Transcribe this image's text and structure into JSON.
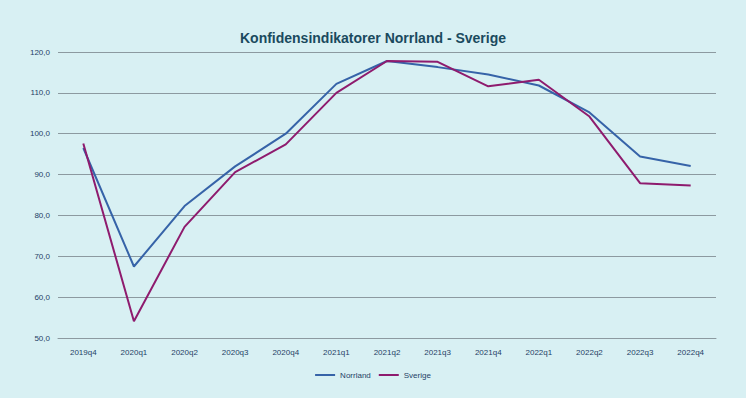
{
  "chart_data": {
    "type": "line",
    "title": "Konfidensindikatorer Norrland - Sverige",
    "categories": [
      "2019q4",
      "2020q1",
      "2020q2",
      "2020q3",
      "2020q4",
      "2021q1",
      "2021q2",
      "2021q3",
      "2021q4",
      "2022q1",
      "2022q2",
      "2022q3",
      "2022q4"
    ],
    "series": [
      {
        "name": "Norrland",
        "color": "#3663a8",
        "values": [
          96.5,
          67.5,
          82.3,
          92.0,
          100.0,
          112.2,
          117.8,
          116.3,
          114.5,
          111.8,
          105.2,
          94.4,
          92.1
        ]
      },
      {
        "name": "Sverige",
        "color": "#8e1b6e",
        "values": [
          97.6,
          54.1,
          77.2,
          90.6,
          97.4,
          110.0,
          117.8,
          117.6,
          111.6,
          113.2,
          104.2,
          87.9,
          87.3
        ]
      }
    ],
    "ylim": [
      50,
      120
    ],
    "yticks": [
      {
        "value": 50,
        "label": "50,0"
      },
      {
        "value": 60,
        "label": "60,0"
      },
      {
        "value": 70,
        "label": "70,0"
      },
      {
        "value": 80,
        "label": "80,0"
      },
      {
        "value": 90,
        "label": "90,0"
      },
      {
        "value": 100,
        "label": "100,0"
      },
      {
        "value": 110,
        "label": "110,0"
      },
      {
        "value": 120,
        "label": "120,0"
      }
    ],
    "grid": true,
    "legend": "bottom"
  }
}
